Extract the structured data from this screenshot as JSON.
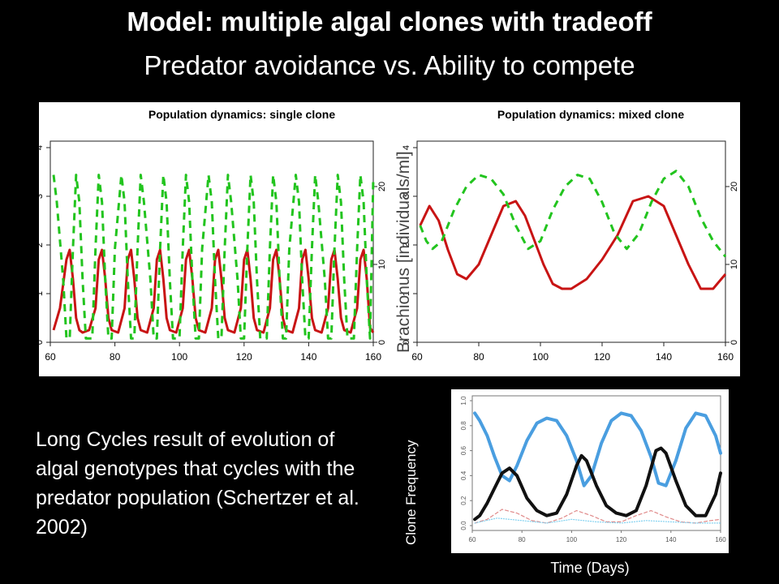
{
  "slide": {
    "title_bold": "Model: multiple algal clones with tradeoff",
    "subtitle": "Predator avoidance  vs. Ability to compete",
    "body_text": "Long Cycles result of evolution of algal genotypes that cycles with the predator population (Schertzer et al. 2002)",
    "overlay_ylabel": "Brachionus [individuals/ml]"
  },
  "colors": {
    "algae": "#c81414",
    "predator": "#22c41e",
    "clone_a": "#4a9ee0",
    "clone_b": "#111111",
    "clone_c": "#e08a8a",
    "clone_d": "#7fd0f0"
  },
  "chart_data": [
    {
      "type": "line",
      "title": "Population dynamics: single clone",
      "xlim": [
        60,
        160
      ],
      "xticks": [
        "60",
        "80",
        "100",
        "120",
        "140",
        "160"
      ],
      "ylim_left": [
        0,
        4
      ],
      "yticks_left": [
        "0",
        "1",
        "2",
        "3",
        "4"
      ],
      "ylim_right": [
        0,
        25
      ],
      "yticks_right": [
        "0",
        "10",
        "20"
      ],
      "series": [
        {
          "style": "solid",
          "axis": "left",
          "color": "#c81414",
          "x": [
            61,
            63,
            65,
            66,
            67,
            68,
            69,
            70,
            72,
            74,
            75,
            76,
            77,
            78,
            79,
            81,
            83,
            84,
            85,
            86,
            87,
            88,
            90,
            92,
            93,
            94,
            95,
            96,
            97,
            99,
            101,
            102,
            103,
            104,
            105,
            106,
            108,
            110,
            111,
            112,
            113,
            114,
            115,
            117,
            119,
            120,
            121,
            122,
            123,
            124,
            126,
            128,
            129,
            130,
            131,
            132,
            133,
            135,
            137,
            138,
            139,
            140,
            141,
            142,
            144,
            146,
            147,
            148,
            149,
            150,
            151,
            153,
            155,
            156,
            157,
            158,
            159,
            160
          ],
          "y": [
            0.25,
            0.7,
            1.7,
            1.9,
            1.3,
            0.5,
            0.25,
            0.2,
            0.25,
            0.7,
            1.7,
            1.9,
            1.3,
            0.5,
            0.25,
            0.2,
            0.7,
            1.7,
            1.9,
            1.3,
            0.5,
            0.25,
            0.2,
            0.7,
            1.7,
            1.9,
            1.3,
            0.5,
            0.25,
            0.2,
            0.7,
            1.7,
            1.9,
            1.3,
            0.5,
            0.25,
            0.2,
            0.7,
            1.7,
            1.9,
            1.3,
            0.5,
            0.25,
            0.2,
            0.7,
            1.7,
            1.9,
            1.3,
            0.5,
            0.25,
            0.2,
            0.7,
            1.7,
            1.9,
            1.3,
            0.5,
            0.25,
            0.2,
            0.7,
            1.7,
            1.9,
            1.3,
            0.5,
            0.25,
            0.2,
            0.7,
            1.7,
            1.9,
            1.3,
            0.5,
            0.25,
            0.2,
            0.7,
            1.7,
            1.9,
            1.3,
            0.3,
            0.2
          ]
        },
        {
          "style": "dashed",
          "axis": "right",
          "color": "#22c41e",
          "x": [
            61,
            62,
            64,
            65,
            66,
            67,
            68,
            69,
            70,
            71,
            73,
            74,
            75,
            76,
            77,
            78,
            79,
            80,
            82,
            83,
            84,
            85,
            86,
            87,
            88,
            89,
            91,
            92,
            93,
            94,
            95,
            96,
            97,
            98,
            100,
            101,
            102,
            103,
            104,
            105,
            106,
            107,
            109,
            110,
            111,
            112,
            113,
            114,
            115,
            116,
            118,
            119,
            120,
            121,
            122,
            123,
            124,
            125,
            127,
            128,
            129,
            130,
            131,
            132,
            133,
            134,
            136,
            137,
            138,
            139,
            140,
            141,
            142,
            143,
            145,
            146,
            147,
            148,
            149,
            150,
            151,
            152,
            154,
            155,
            156,
            157,
            158,
            159,
            160
          ],
          "y": [
            21.5,
            18,
            8,
            0.5,
            0.5,
            12,
            21.5,
            18,
            8,
            0.5,
            0.5,
            12,
            21.5,
            18,
            8,
            0.5,
            0.5,
            12,
            21.5,
            18,
            8,
            0.5,
            0.5,
            12,
            21.5,
            18,
            8,
            0.5,
            0.5,
            12,
            21.5,
            18,
            8,
            0.5,
            0.5,
            12,
            21.5,
            18,
            8,
            0.5,
            0.5,
            12,
            21.5,
            18,
            8,
            0.5,
            0.5,
            12,
            21.5,
            18,
            8,
            0.5,
            0.5,
            12,
            21.5,
            18,
            8,
            0.5,
            0.5,
            12,
            21.5,
            18,
            8,
            0.5,
            0.5,
            12,
            21.5,
            18,
            8,
            0.5,
            0.5,
            12,
            21.5,
            18,
            8,
            0.5,
            0.5,
            12,
            21.5,
            18,
            8,
            0.5,
            0.5,
            12,
            21.5,
            18,
            8,
            0.5,
            21
          ]
        }
      ]
    },
    {
      "type": "line",
      "title": "Population dynamics: mixed clone",
      "xlim": [
        60,
        160
      ],
      "xticks": [
        "60",
        "80",
        "100",
        "120",
        "140",
        "160"
      ],
      "ylim_left": [
        0,
        4
      ],
      "yticks_left": [
        "0",
        "1",
        "2",
        "3",
        "4"
      ],
      "ylim_right": [
        0,
        25
      ],
      "yticks_right": [
        "0",
        "10",
        "20"
      ],
      "series": [
        {
          "style": "solid",
          "axis": "left",
          "color": "#c81414",
          "x": [
            61,
            64,
            67,
            70,
            73,
            76,
            80,
            84,
            88,
            92,
            95,
            98,
            101,
            104,
            107,
            110,
            115,
            120,
            125,
            130,
            135,
            140,
            144,
            148,
            152,
            156,
            160
          ],
          "y": [
            2.4,
            2.8,
            2.5,
            1.9,
            1.4,
            1.3,
            1.6,
            2.2,
            2.8,
            2.9,
            2.6,
            2.1,
            1.6,
            1.2,
            1.1,
            1.1,
            1.3,
            1.7,
            2.2,
            2.9,
            3.0,
            2.8,
            2.2,
            1.6,
            1.1,
            1.1,
            1.4
          ]
        },
        {
          "style": "dashed",
          "axis": "right",
          "color": "#22c41e",
          "x": [
            61,
            63,
            65,
            68,
            72,
            76,
            80,
            84,
            88,
            92,
            96,
            100,
            104,
            108,
            112,
            116,
            120,
            124,
            128,
            132,
            136,
            140,
            144,
            148,
            152,
            156,
            160
          ],
          "y": [
            15,
            13,
            12,
            13,
            17,
            20,
            21.5,
            21,
            19,
            15,
            12,
            13,
            17,
            20,
            21.5,
            21,
            18,
            14,
            12,
            14,
            18,
            21,
            22,
            20,
            16,
            13,
            11
          ]
        }
      ]
    },
    {
      "type": "line",
      "title": "",
      "xlabel": "Time (Days)",
      "ylabel": "Clone Frequency",
      "xlim": [
        60,
        160
      ],
      "xticks": [
        "60",
        "80",
        "100",
        "120",
        "140",
        "160"
      ],
      "ylim": [
        0,
        1
      ],
      "yticks": [
        "0.0",
        "0.2",
        "0.4",
        "0.6",
        "0.8",
        "1.0"
      ],
      "series": [
        {
          "style": "thick",
          "color": "#4a9ee0",
          "x": [
            61,
            63,
            66,
            69,
            72,
            75,
            78,
            82,
            86,
            90,
            94,
            98,
            102,
            105,
            108,
            112,
            116,
            120,
            124,
            128,
            132,
            135,
            138,
            142,
            146,
            150,
            154,
            158,
            160
          ],
          "y": [
            0.9,
            0.84,
            0.72,
            0.55,
            0.4,
            0.36,
            0.48,
            0.68,
            0.82,
            0.86,
            0.84,
            0.72,
            0.52,
            0.32,
            0.4,
            0.66,
            0.84,
            0.9,
            0.88,
            0.76,
            0.55,
            0.34,
            0.32,
            0.52,
            0.78,
            0.9,
            0.88,
            0.72,
            0.58
          ]
        },
        {
          "style": "thick",
          "color": "#111111",
          "x": [
            61,
            63,
            66,
            69,
            72,
            75,
            78,
            82,
            86,
            90,
            94,
            98,
            102,
            104,
            106,
            110,
            114,
            118,
            122,
            126,
            130,
            134,
            136,
            138,
            142,
            146,
            150,
            154,
            158,
            160
          ],
          "y": [
            0.05,
            0.08,
            0.18,
            0.3,
            0.42,
            0.46,
            0.4,
            0.22,
            0.12,
            0.08,
            0.1,
            0.25,
            0.48,
            0.56,
            0.52,
            0.32,
            0.16,
            0.1,
            0.08,
            0.12,
            0.32,
            0.6,
            0.62,
            0.58,
            0.36,
            0.16,
            0.08,
            0.08,
            0.25,
            0.42
          ]
        },
        {
          "style": "dashed",
          "color": "#e08a8a",
          "x": [
            61,
            66,
            72,
            78,
            84,
            90,
            96,
            102,
            108,
            114,
            120,
            126,
            132,
            138,
            144,
            150,
            156,
            160
          ],
          "y": [
            0.02,
            0.05,
            0.13,
            0.1,
            0.04,
            0.02,
            0.06,
            0.12,
            0.08,
            0.03,
            0.03,
            0.08,
            0.12,
            0.07,
            0.03,
            0.02,
            0.04,
            0.05
          ]
        },
        {
          "style": "dotted",
          "color": "#7fd0f0",
          "x": [
            61,
            70,
            80,
            90,
            100,
            110,
            120,
            130,
            140,
            150,
            160
          ],
          "y": [
            0.02,
            0.06,
            0.04,
            0.02,
            0.05,
            0.03,
            0.02,
            0.04,
            0.03,
            0.02,
            0.02
          ]
        }
      ]
    }
  ]
}
